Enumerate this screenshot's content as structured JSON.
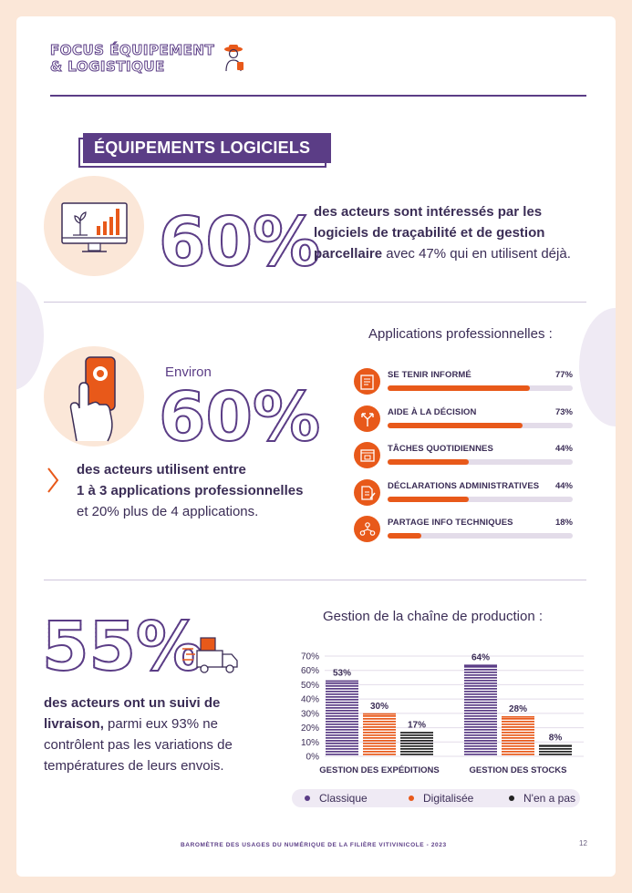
{
  "header": {
    "line1": "FOCUS ÉQUIPEMENT",
    "line2": "& LOGISTIQUE"
  },
  "section_banner": "ÉQUIPEMENTS LOGICIELS",
  "stat1": {
    "value": "60%",
    "text_bold_1": "des acteurs sont intéressés par les",
    "text_bold_2": "logiciels de traçabilité et de gestion",
    "text_bold_3": "parcellaire",
    "text_rest_3": " avec 47% qui en utilisent déjà."
  },
  "stat2": {
    "prefix": "Environ",
    "value": "60%",
    "text_bold_1": "des acteurs utilisent entre",
    "text_bold_2": "1 à 3 applications professionnelles",
    "text_rest": "et 20% plus de 4 applications."
  },
  "apps": {
    "title": "Applications professionnelles :",
    "items": [
      {
        "label": "SE TENIR INFORMÉ",
        "pct_label": "77%",
        "value": 77,
        "icon": "newspaper-icon"
      },
      {
        "label": "AIDE À LA DÉCISION",
        "pct_label": "73%",
        "value": 73,
        "icon": "fork-arrows-icon"
      },
      {
        "label": "TÂCHES QUOTIDIENNES",
        "pct_label": "44%",
        "value": 44,
        "icon": "browser-window-icon"
      },
      {
        "label": "DÉCLARATIONS ADMINISTRATIVES",
        "pct_label": "44%",
        "value": 44,
        "icon": "document-pen-icon"
      },
      {
        "label": "PARTAGE INFO TECHNIQUES",
        "pct_label": "18%",
        "value": 18,
        "icon": "people-network-icon"
      }
    ]
  },
  "stat3": {
    "value": "55%",
    "text_bold_1": "des acteurs ont un suivi de",
    "text_bold_2": "livraison,",
    "text_rest_2": " parmi eux 93% ne",
    "text_rest_3": "contrôlent pas les variations de",
    "text_rest_4": "températures de leurs envois."
  },
  "chart_data": {
    "type": "bar",
    "title": "Gestion de la chaîne de production :",
    "categories": [
      "GESTION DES EXPÉDITIONS",
      "GESTION DES STOCKS"
    ],
    "series": [
      {
        "name": "Classique",
        "values": [
          53,
          64
        ],
        "labels": [
          "53%",
          "64%"
        ],
        "color": "#5b3d86"
      },
      {
        "name": "Digitalisée",
        "values": [
          30,
          28
        ],
        "labels": [
          "30%",
          "28%"
        ],
        "color": "#e8591a"
      },
      {
        "name": "N'en a pas",
        "values": [
          17,
          8
        ],
        "labels": [
          "17%",
          "8%"
        ],
        "color": "#222222"
      }
    ],
    "ylim": [
      0,
      70
    ],
    "yticks": [
      "0%",
      "10%",
      "20%",
      "30%",
      "40%",
      "50%",
      "60%",
      "70%"
    ],
    "grid": true,
    "legend": "bottom"
  },
  "footer": {
    "text": "BAROMÈTRE DES USAGES DU NUMÉRIQUE DE LA FILIÈRE VITIVINICOLE - 2023",
    "page": "12"
  },
  "colors": {
    "purple": "#5b3d86",
    "orange": "#e8591a",
    "peach": "#fbe7d8",
    "black": "#222222"
  }
}
